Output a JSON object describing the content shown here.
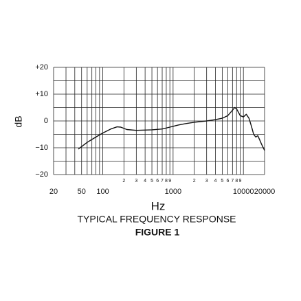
{
  "chart_data": {
    "type": "line",
    "title": "TYPICAL FREQUENCY RESPONSE",
    "subtitle": "FIGURE 1",
    "x_label": "Hz",
    "y_label": "dB",
    "log_x": true,
    "grid": true,
    "xlim": [
      20,
      20000
    ],
    "ylim": [
      -20,
      20
    ],
    "xticks": [
      20,
      50,
      100,
      1000,
      10000,
      20000,
      {
        "value": 200,
        "label": "2"
      },
      {
        "value": 300,
        "label": "3"
      },
      {
        "value": 400,
        "label": "4"
      },
      {
        "value": 500,
        "label": "5"
      },
      {
        "value": 600,
        "label": "6"
      },
      {
        "value": 700,
        "label": "7"
      },
      {
        "value": 800,
        "label": "8"
      },
      {
        "value": 900,
        "label": "9"
      },
      {
        "value": 2000,
        "label": "2"
      },
      {
        "value": 3000,
        "label": "3"
      },
      {
        "value": 4000,
        "label": "4"
      },
      {
        "value": 5000,
        "label": "5"
      },
      {
        "value": 6000,
        "label": "6"
      },
      {
        "value": 7000,
        "label": "7"
      },
      {
        "value": 8000,
        "label": "8"
      },
      {
        "value": 9000,
        "label": "9"
      }
    ],
    "xgrid": [
      30,
      40,
      60,
      70,
      80,
      90
    ],
    "yticks": [
      {
        "value": 20,
        "label": "+20"
      },
      {
        "value": 10,
        "label": "+10"
      },
      0,
      {
        "value": -10,
        "label": "−10"
      },
      {
        "value": -20,
        "label": "−20"
      }
    ],
    "ygrid": [
      15,
      5,
      -5,
      -15
    ],
    "color": "#111111",
    "x": [
      45,
      60,
      80,
      100,
      130,
      160,
      180,
      220,
      300,
      500,
      700,
      900,
      1000,
      1200,
      1500,
      2000,
      3000,
      4000,
      5000,
      6000,
      7000,
      7500,
      8000,
      9000,
      10000,
      11000,
      12000,
      13000,
      14000,
      15000,
      16000,
      17000,
      18000,
      20000
    ],
    "values": [
      -10.5,
      -8,
      -6,
      -4.5,
      -3,
      -2.2,
      -2.3,
      -3.2,
      -3.5,
      -3.3,
      -3,
      -2.3,
      -2,
      -1.5,
      -1,
      -0.5,
      0,
      0.5,
      1,
      2,
      4,
      5,
      4.5,
      2,
      1.5,
      2.5,
      1,
      -2,
      -5,
      -6,
      -5.5,
      -7,
      -8.5,
      -11
    ]
  }
}
